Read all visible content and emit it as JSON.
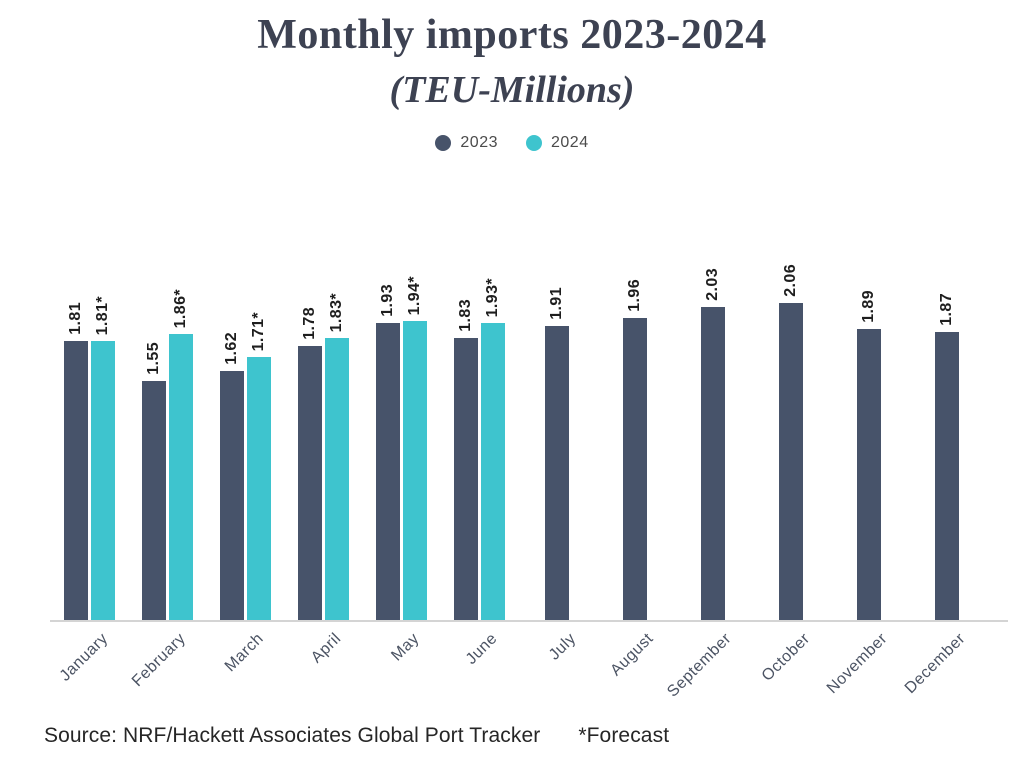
{
  "title": {
    "line1": "Monthly imports 2023-2024",
    "line2": "(TEU-Millions)"
  },
  "legend": [
    {
      "label": "2023",
      "color": "#47536a"
    },
    {
      "label": "2024",
      "color": "#3ec4ce"
    }
  ],
  "footer": {
    "source": "Source: NRF/Hackett Associates Global Port Tracker",
    "forecast_note": "*Forecast"
  },
  "colors": {
    "bar_2023": "#47536a",
    "bar_2024": "#3ec4ce",
    "title_text": "#3d4252",
    "value_label": "#1e1e1e",
    "month_label": "#4b5363",
    "axis_line": "#d4d4d4",
    "background": "#ffffff"
  },
  "chart_data": {
    "type": "bar",
    "title": "Monthly imports 2023-2024 (TEU-Millions)",
    "categories": [
      "January",
      "February",
      "March",
      "April",
      "May",
      "June",
      "July",
      "August",
      "September",
      "October",
      "November",
      "December"
    ],
    "series": [
      {
        "name": "2023",
        "color": "#47536a",
        "values": [
          1.81,
          1.55,
          1.62,
          1.78,
          1.93,
          1.83,
          1.91,
          1.96,
          2.03,
          2.06,
          1.89,
          1.87
        ],
        "labels": [
          "1.81",
          "1.55",
          "1.62",
          "1.78",
          "1.93",
          "1.83",
          "1.91",
          "1.96",
          "2.03",
          "2.06",
          "1.89",
          "1.87"
        ]
      },
      {
        "name": "2024",
        "color": "#3ec4ce",
        "values": [
          1.81,
          1.86,
          1.71,
          1.83,
          1.94,
          1.93,
          null,
          null,
          null,
          null,
          null,
          null
        ],
        "labels": [
          "1.81*",
          "1.86*",
          "1.71*",
          "1.83*",
          "1.94*",
          "1.93*",
          null,
          null,
          null,
          null,
          null,
          null
        ]
      }
    ],
    "ylabel": "TEU-Millions",
    "xlabel": "",
    "ylim": [
      0,
      2.2
    ],
    "grid": false,
    "legend_position": "top",
    "value_labels_rotation": 90,
    "category_labels_rotation": 45,
    "forecast_marker": "*"
  }
}
